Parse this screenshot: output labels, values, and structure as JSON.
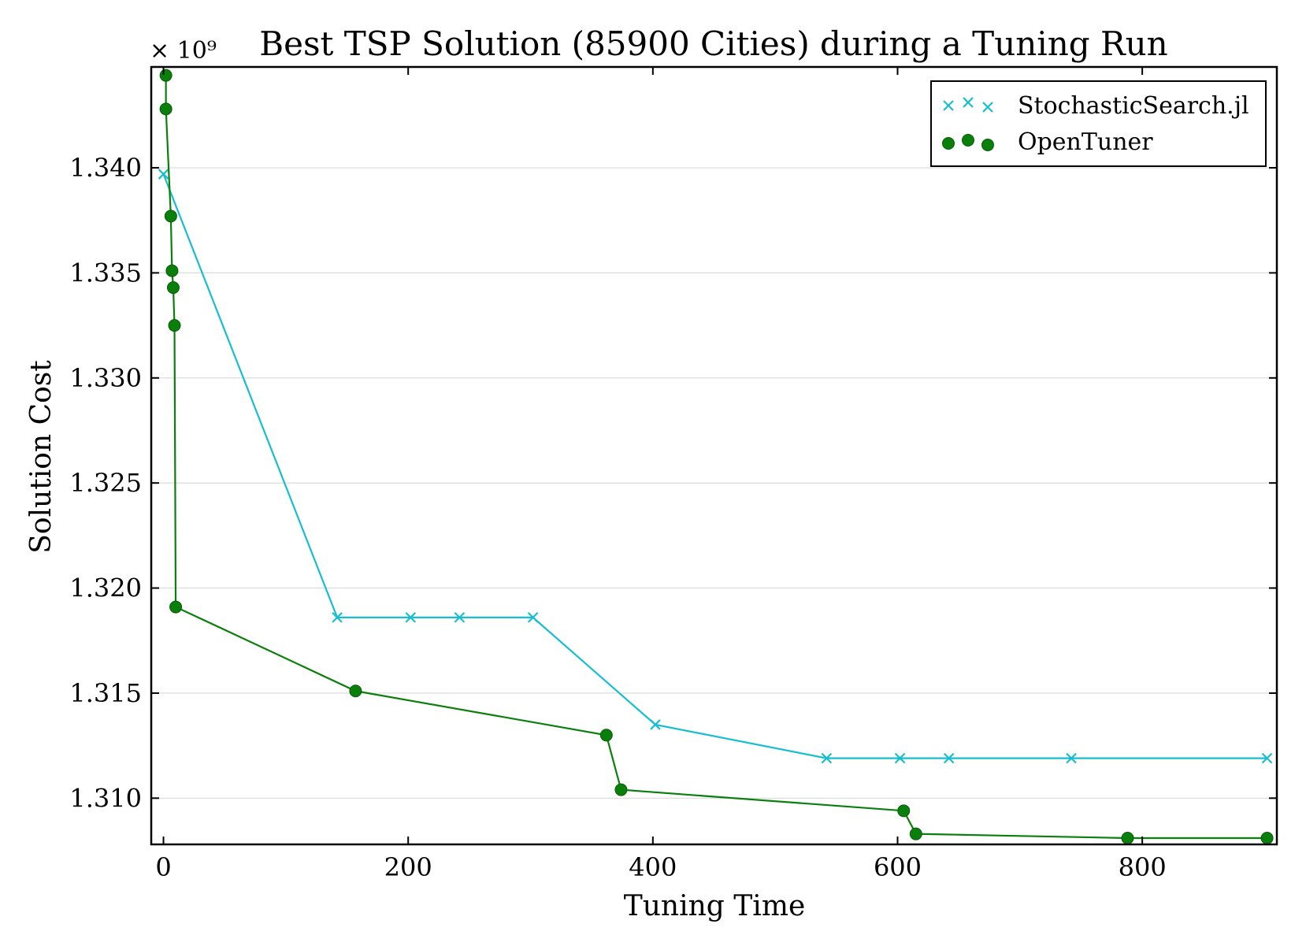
{
  "chart_data": {
    "type": "line",
    "title": "Best TSP Solution (85900 Cities) during a Tuning Run",
    "xlabel": "Tuning Time",
    "ylabel": "Solution Cost",
    "y_offset_label": "× 10⁹",
    "xlim": [
      -10,
      910
    ],
    "ylim": [
      1.3078,
      1.3448
    ],
    "x_ticks": [
      0,
      200,
      400,
      600,
      800
    ],
    "x_tick_labels": [
      "0",
      "200",
      "400",
      "600",
      "800"
    ],
    "y_ticks": [
      1.31,
      1.315,
      1.32,
      1.325,
      1.33,
      1.335,
      1.34
    ],
    "y_tick_labels": [
      "1.310",
      "1.315",
      "1.320",
      "1.325",
      "1.330",
      "1.335",
      "1.340"
    ],
    "grid": "horizontal",
    "legend_position": "top-right",
    "series": [
      {
        "name": "StochasticSearch.jl",
        "color": "#17becf",
        "marker": "x",
        "x": [
          0,
          142,
          202,
          242,
          302,
          402,
          542,
          602,
          642,
          742,
          902
        ],
        "y": [
          1.3397,
          1.3186,
          1.3186,
          1.3186,
          1.3186,
          1.3135,
          1.3119,
          1.3119,
          1.3119,
          1.3119,
          1.3119
        ]
      },
      {
        "name": "OpenTuner",
        "color": "#0b7f0b",
        "marker": "o",
        "x": [
          2,
          2,
          6,
          7,
          8,
          9,
          10,
          157,
          362,
          374,
          605,
          615,
          788,
          902
        ],
        "y": [
          1.3444,
          1.3428,
          1.3377,
          1.3351,
          1.3343,
          1.3325,
          1.3191,
          1.3151,
          1.313,
          1.3104,
          1.3094,
          1.3083,
          1.3081,
          1.3081
        ]
      }
    ]
  }
}
